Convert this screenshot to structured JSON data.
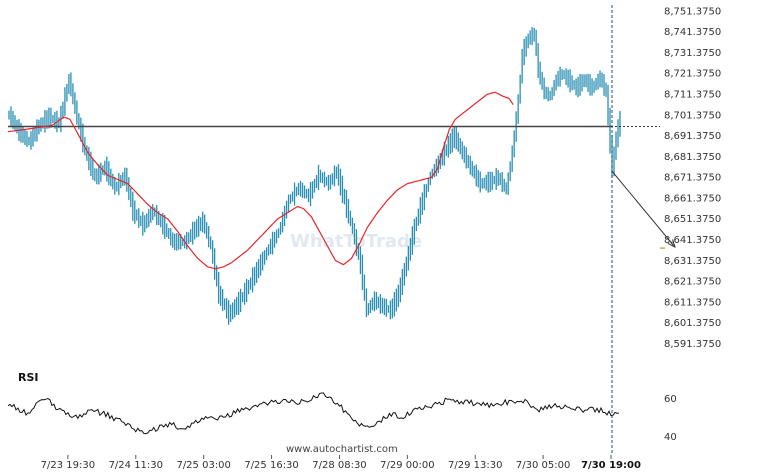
{
  "chart_data": {
    "type": "line",
    "title": "",
    "watermark": "WhatToTrade",
    "footer": "www.autochartist.com",
    "price_ylim": [
      8587.0,
      8753.0
    ],
    "price_ticks": [
      "8,751.3750",
      "8,741.3750",
      "8,731.3750",
      "8,721.3750",
      "8,711.3750",
      "8,701.3750",
      "8,691.3750",
      "8,681.3750",
      "8,671.3750",
      "8,661.3750",
      "8,651.3750",
      "8,641.3750",
      "8,631.3750",
      "8,621.3750",
      "8,611.3750",
      "8,601.3750",
      "8,591.3750"
    ],
    "price_tick_values": [
      8751.375,
      8741.375,
      8731.375,
      8721.375,
      8711.375,
      8701.375,
      8691.375,
      8681.375,
      8671.375,
      8661.375,
      8651.375,
      8641.375,
      8631.375,
      8621.375,
      8611.375,
      8601.375,
      8591.375
    ],
    "x_tick_labels": [
      {
        "label": "7/23 19:30",
        "bar": 30
      },
      {
        "label": "7/24 11:30",
        "bar": 64
      },
      {
        "label": "7/25 03:00",
        "bar": 98
      },
      {
        "label": "7/25 16:30",
        "bar": 132
      },
      {
        "label": "7/28 08:30",
        "bar": 166
      },
      {
        "label": "7/29 00:00",
        "bar": 200
      },
      {
        "label": "7/29 13:30",
        "bar": 234
      },
      {
        "label": "7/30 05:00",
        "bar": 268
      },
      {
        "label": "7/30 19:00",
        "bar": 302,
        "bold": true
      }
    ],
    "total_bars": 307,
    "bar_color": "#2a8fb5",
    "ma_color": "#e8262b",
    "support_level": 8695.5,
    "support_color": "#444444",
    "forecast_level": 8637.0,
    "forecast_color": "#c98a3a",
    "forecast_arrow": {
      "from_bar": 302,
      "from_price": 8674.0,
      "to_bar": 334,
      "to_price": 8637.5
    },
    "vline_bar": 302,
    "price_keypoints": [
      [
        0,
        8701
      ],
      [
        5,
        8693
      ],
      [
        10,
        8688
      ],
      [
        15,
        8696
      ],
      [
        20,
        8700
      ],
      [
        25,
        8697
      ],
      [
        30,
        8718
      ],
      [
        34,
        8700
      ],
      [
        38,
        8684
      ],
      [
        43,
        8671
      ],
      [
        48,
        8676
      ],
      [
        53,
        8666
      ],
      [
        58,
        8672
      ],
      [
        62,
        8655
      ],
      [
        67,
        8648
      ],
      [
        72,
        8655
      ],
      [
        77,
        8648
      ],
      [
        82,
        8640
      ],
      [
        88,
        8640
      ],
      [
        93,
        8646
      ],
      [
        97,
        8650
      ],
      [
        101,
        8638
      ],
      [
        105,
        8615
      ],
      [
        110,
        8605
      ],
      [
        115,
        8611
      ],
      [
        120,
        8619
      ],
      [
        125,
        8628
      ],
      [
        130,
        8637
      ],
      [
        135,
        8645
      ],
      [
        140,
        8660
      ],
      [
        145,
        8666
      ],
      [
        150,
        8662
      ],
      [
        155,
        8672
      ],
      [
        160,
        8668
      ],
      [
        164,
        8674
      ],
      [
        168,
        8660
      ],
      [
        172,
        8646
      ],
      [
        176,
        8629
      ],
      [
        179,
        8607
      ],
      [
        183,
        8612
      ],
      [
        187,
        8609
      ],
      [
        191,
        8607
      ],
      [
        195,
        8615
      ],
      [
        199,
        8630
      ],
      [
        203,
        8647
      ],
      [
        207,
        8660
      ],
      [
        211,
        8672
      ],
      [
        215,
        8678
      ],
      [
        219,
        8685
      ],
      [
        223,
        8691
      ],
      [
        227,
        8683
      ],
      [
        231,
        8676
      ],
      [
        236,
        8668
      ],
      [
        241,
        8669
      ],
      [
        245,
        8671
      ],
      [
        249,
        8665
      ],
      [
        252,
        8683
      ],
      [
        255,
        8708
      ],
      [
        257,
        8730
      ],
      [
        260,
        8738
      ],
      [
        263,
        8740
      ],
      [
        265,
        8723
      ],
      [
        268,
        8712
      ],
      [
        271,
        8710
      ],
      [
        274,
        8718
      ],
      [
        277,
        8721
      ],
      [
        280,
        8718
      ],
      [
        284,
        8714
      ],
      [
        288,
        8718
      ],
      [
        292,
        8714
      ],
      [
        296,
        8719
      ],
      [
        299,
        8712
      ],
      [
        302,
        8675
      ],
      [
        304,
        8690
      ],
      [
        306,
        8699
      ]
    ],
    "ma_keypoints": [
      [
        0,
        8693
      ],
      [
        8,
        8694
      ],
      [
        15,
        8695
      ],
      [
        22,
        8696
      ],
      [
        28,
        8700
      ],
      [
        31,
        8699
      ],
      [
        35,
        8692
      ],
      [
        40,
        8683
      ],
      [
        45,
        8677
      ],
      [
        50,
        8672
      ],
      [
        55,
        8670
      ],
      [
        60,
        8668
      ],
      [
        65,
        8663
      ],
      [
        70,
        8658
      ],
      [
        75,
        8654
      ],
      [
        80,
        8651
      ],
      [
        85,
        8645
      ],
      [
        90,
        8638
      ],
      [
        95,
        8632
      ],
      [
        100,
        8628
      ],
      [
        104,
        8627
      ],
      [
        108,
        8628
      ],
      [
        112,
        8630
      ],
      [
        116,
        8633
      ],
      [
        120,
        8636
      ],
      [
        125,
        8641
      ],
      [
        130,
        8646
      ],
      [
        135,
        8651
      ],
      [
        140,
        8654
      ],
      [
        145,
        8657
      ],
      [
        148,
        8656
      ],
      [
        152,
        8652
      ],
      [
        156,
        8645
      ],
      [
        160,
        8638
      ],
      [
        164,
        8631
      ],
      [
        168,
        8629
      ],
      [
        172,
        8632
      ],
      [
        176,
        8639
      ],
      [
        180,
        8647
      ],
      [
        185,
        8654
      ],
      [
        190,
        8660
      ],
      [
        195,
        8665
      ],
      [
        200,
        8668
      ],
      [
        204,
        8669
      ],
      [
        208,
        8670
      ],
      [
        212,
        8671
      ],
      [
        215,
        8675
      ],
      [
        218,
        8685
      ],
      [
        221,
        8694
      ],
      [
        224,
        8699
      ],
      [
        228,
        8702
      ],
      [
        232,
        8705
      ],
      [
        236,
        8708
      ],
      [
        240,
        8711
      ],
      [
        244,
        8712
      ],
      [
        248,
        8710
      ],
      [
        251,
        8709
      ],
      [
        253,
        8706
      ]
    ],
    "rsi": {
      "title": "RSI",
      "ylim": [
        38,
        68
      ],
      "ticks": [
        "60",
        "40"
      ],
      "tick_values": [
        60,
        40
      ],
      "keypoints": [
        [
          0,
          57
        ],
        [
          10,
          52
        ],
        [
          18,
          60
        ],
        [
          26,
          54
        ],
        [
          34,
          50
        ],
        [
          42,
          54
        ],
        [
          50,
          51
        ],
        [
          58,
          47
        ],
        [
          65,
          43
        ],
        [
          70,
          42
        ],
        [
          76,
          45
        ],
        [
          82,
          46
        ],
        [
          88,
          44
        ],
        [
          95,
          48
        ],
        [
          100,
          49
        ],
        [
          108,
          50
        ],
        [
          115,
          53
        ],
        [
          122,
          55
        ],
        [
          130,
          57
        ],
        [
          138,
          59
        ],
        [
          145,
          57
        ],
        [
          152,
          60
        ],
        [
          158,
          63
        ],
        [
          164,
          58
        ],
        [
          170,
          52
        ],
        [
          176,
          46
        ],
        [
          180,
          44
        ],
        [
          186,
          48
        ],
        [
          192,
          52
        ],
        [
          198,
          50
        ],
        [
          205,
          54
        ],
        [
          212,
          56
        ],
        [
          220,
          59
        ],
        [
          228,
          58
        ],
        [
          235,
          57
        ],
        [
          242,
          56
        ],
        [
          250,
          58
        ],
        [
          258,
          59
        ],
        [
          265,
          54
        ],
        [
          272,
          56
        ],
        [
          280,
          55
        ],
        [
          288,
          54
        ],
        [
          296,
          54
        ],
        [
          302,
          52
        ],
        [
          306,
          52
        ]
      ]
    }
  }
}
